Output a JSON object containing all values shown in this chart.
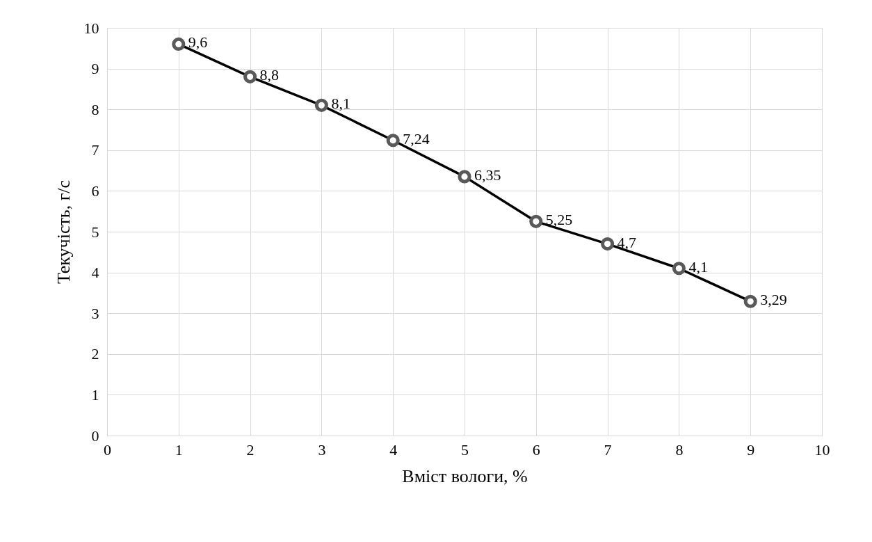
{
  "chart_data": {
    "type": "line",
    "xlabel": "Вміст вологи, %",
    "ylabel": "Текучість, г/с",
    "x": [
      1,
      2,
      3,
      4,
      5,
      6,
      7,
      8,
      9
    ],
    "series": [
      {
        "color": "#000000",
        "values": [
          9.6,
          8.8,
          8.1,
          7.24,
          6.35,
          5.25,
          4.7,
          4.1,
          3.29
        ],
        "value_labels": [
          "9,6",
          "8,8",
          "8,1",
          "7,24",
          "6,35",
          "5,25",
          "4,7",
          "4,1",
          "3,29"
        ]
      }
    ],
    "xlim": [
      0,
      10
    ],
    "ylim": [
      0,
      10
    ],
    "xticks": [
      0,
      1,
      2,
      3,
      4,
      5,
      6,
      7,
      8,
      9,
      10
    ],
    "yticks": [
      0,
      1,
      2,
      3,
      4,
      5,
      6,
      7,
      8,
      9,
      10
    ],
    "grid": true,
    "marker": "circle",
    "line_style": "solid"
  }
}
